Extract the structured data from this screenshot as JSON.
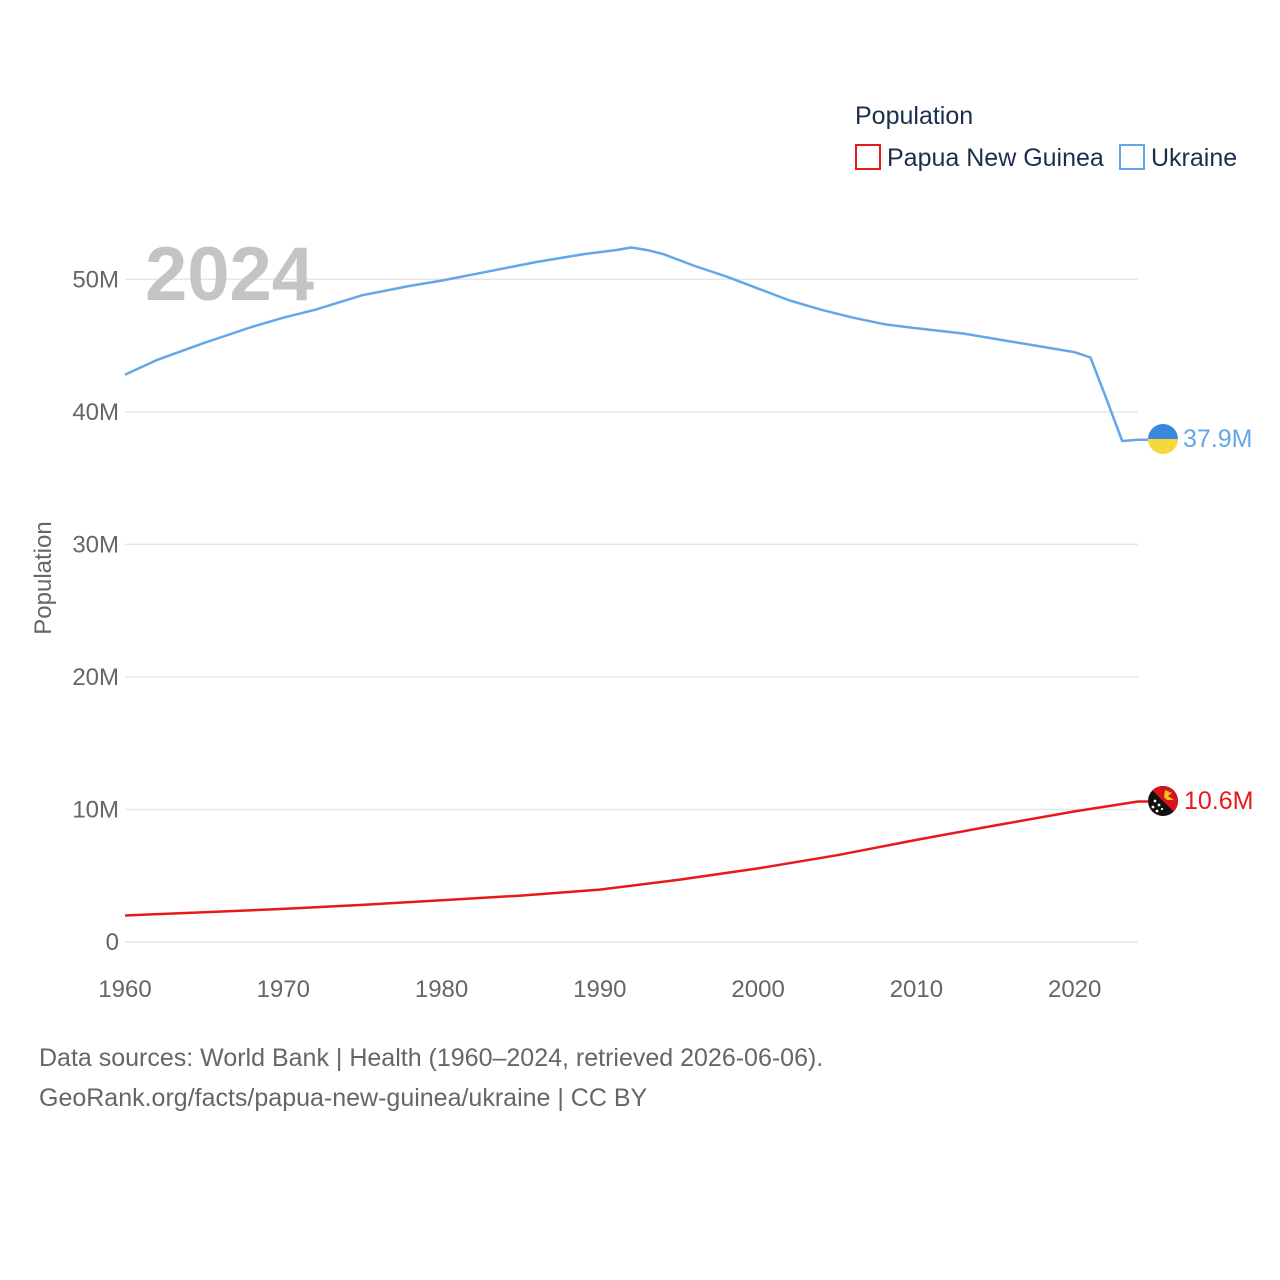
{
  "chart_data": {
    "type": "line",
    "year_label": "2024",
    "ylabel": "Population",
    "ylim": [
      0,
      55000000
    ],
    "xlim": [
      1960,
      2024
    ],
    "y_ticks": [
      {
        "value": 0,
        "label": "0"
      },
      {
        "value": 10000000,
        "label": "10M"
      },
      {
        "value": 20000000,
        "label": "20M"
      },
      {
        "value": 30000000,
        "label": "30M"
      },
      {
        "value": 40000000,
        "label": "40M"
      },
      {
        "value": 50000000,
        "label": "50M"
      }
    ],
    "x_ticks": [
      {
        "value": 1960,
        "label": "1960"
      },
      {
        "value": 1970,
        "label": "1970"
      },
      {
        "value": 1980,
        "label": "1980"
      },
      {
        "value": 1990,
        "label": "1990"
      },
      {
        "value": 2000,
        "label": "2000"
      },
      {
        "value": 2010,
        "label": "2010"
      },
      {
        "value": 2020,
        "label": "2020"
      }
    ],
    "legend": {
      "title": "Population",
      "position": "top-right",
      "entries": [
        {
          "name": "Papua New Guinea",
          "color": "#e8191a"
        },
        {
          "name": "Ukraine",
          "color": "#64a7e8"
        }
      ]
    },
    "series": [
      {
        "name": "Ukraine",
        "color": "#64a7e8",
        "end_label": "37.9M",
        "x": [
          1960,
          1962,
          1965,
          1968,
          1970,
          1972,
          1975,
          1978,
          1980,
          1983,
          1986,
          1989,
          1991,
          1992,
          1993,
          1994,
          1996,
          1998,
          2000,
          2002,
          2004,
          2006,
          2008,
          2010,
          2013,
          2016,
          2018,
          2020,
          2021,
          2022,
          2023,
          2024
        ],
        "values": [
          42800000,
          43900000,
          45200000,
          46400000,
          47100000,
          47700000,
          48800000,
          49500000,
          49900000,
          50600000,
          51300000,
          51900000,
          52200000,
          52400000,
          52200000,
          51900000,
          51000000,
          50200000,
          49300000,
          48400000,
          47700000,
          47100000,
          46600000,
          46300000,
          45900000,
          45300000,
          44900000,
          44500000,
          44100000,
          41000000,
          37800000,
          37900000
        ]
      },
      {
        "name": "Papua New Guinea",
        "color": "#e8191a",
        "end_label": "10.6M",
        "x": [
          1960,
          1965,
          1970,
          1975,
          1980,
          1985,
          1990,
          1995,
          2000,
          2005,
          2010,
          2015,
          2020,
          2024
        ],
        "values": [
          2000000,
          2250000,
          2500000,
          2800000,
          3150000,
          3500000,
          3950000,
          4700000,
          5550000,
          6550000,
          7700000,
          8800000,
          9850000,
          10600000
        ]
      }
    ]
  },
  "source": {
    "line1": "Data sources: World Bank | Health (1960–2024, retrieved 2026-06-06).",
    "line2": "GeoRank.org/facts/papua-new-guinea/ukraine | CC BY"
  },
  "flags": {
    "ukraine": {
      "top_color": "#3a86e0",
      "bottom_color": "#f7d83c"
    },
    "papua_new_guinea": {
      "black": "#111111",
      "red": "#d8141e",
      "gold": "#f3c11b",
      "white": "#ffffff"
    }
  }
}
